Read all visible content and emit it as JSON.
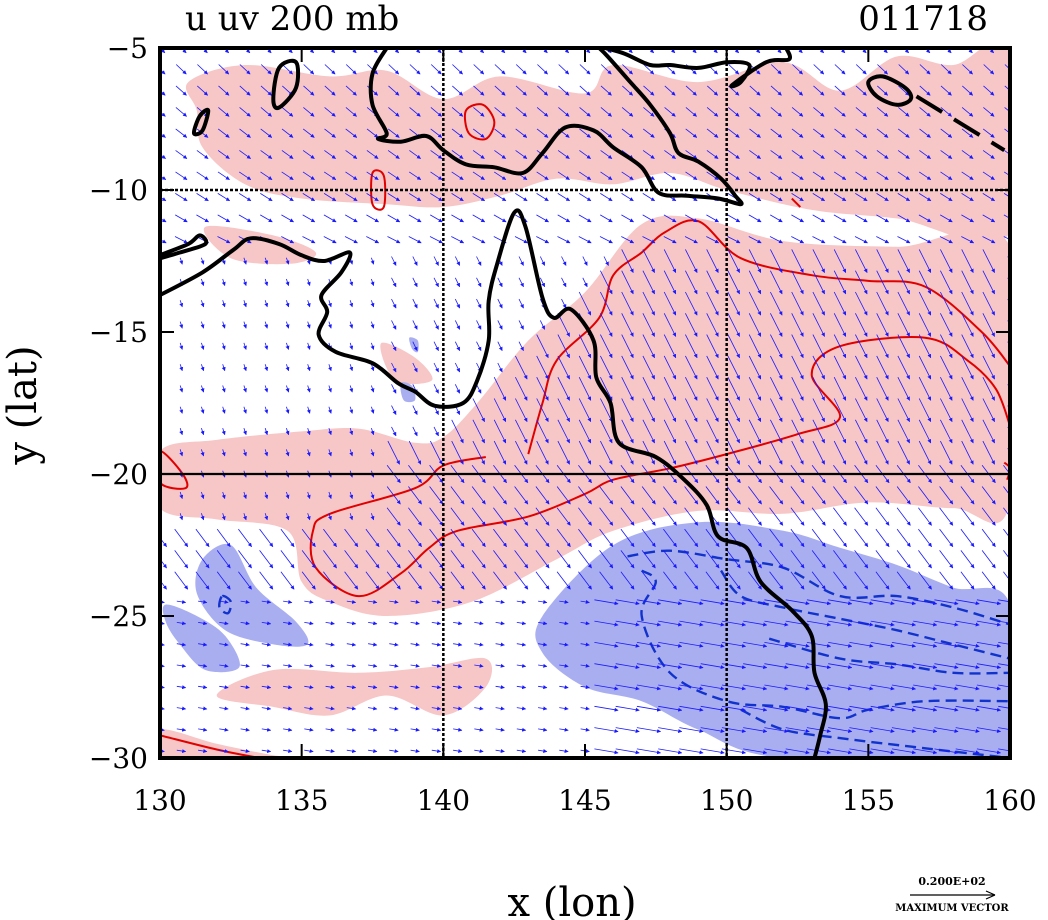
{
  "header": {
    "title": "u uv 200 mb",
    "id": "011718"
  },
  "chart_data": {
    "type": "contour",
    "title": "u uv 200 mb",
    "time_code": "011718",
    "xlabel": "x (lon)",
    "ylabel": "y (lat)",
    "xlim": [
      130,
      160
    ],
    "ylim": [
      -30,
      -5
    ],
    "xticks": [
      130,
      135,
      140,
      145,
      150,
      155,
      160
    ],
    "yticks": [
      -5,
      -10,
      -15,
      -20,
      -25,
      -30
    ],
    "xtick_labels": [
      "130",
      "135",
      "140",
      "145",
      "150",
      "155",
      "160"
    ],
    "ytick_labels": [
      "−5",
      "−10",
      "−15",
      "−20",
      "−25",
      "−30"
    ],
    "gridlines_lon": [
      140,
      150
    ],
    "gridlines_lat": [
      -10,
      -20
    ],
    "colors": {
      "positive_shade": "#f7c6c6",
      "negative_shade": "#a9aef0",
      "positive_contour": "#e00000",
      "negative_contour": "#1133cc",
      "vectors": "#1a1aff",
      "coastline": "#000000"
    },
    "legend": {
      "vector_value": "0.200E+02",
      "vector_label": "MAXIMUM VECTOR"
    },
    "positive_shade_regions": [
      [
        [
          131,
          -6.2
        ],
        [
          133,
          -5.6
        ],
        [
          136,
          -6
        ],
        [
          138,
          -5.8
        ],
        [
          140,
          -6.8
        ],
        [
          142,
          -6
        ],
        [
          145,
          -6.6
        ],
        [
          146,
          -5.6
        ],
        [
          149,
          -6.2
        ],
        [
          152,
          -5.5
        ],
        [
          154,
          -6.5
        ],
        [
          156,
          -5.3
        ],
        [
          158,
          -5.6
        ],
        [
          160,
          -5
        ],
        [
          160,
          -11.5
        ],
        [
          156,
          -11
        ],
        [
          153,
          -10.7
        ],
        [
          150,
          -10
        ],
        [
          148,
          -9.4
        ],
        [
          146,
          -9.8
        ],
        [
          144,
          -9.6
        ],
        [
          142,
          -10.2
        ],
        [
          140,
          -10.6
        ],
        [
          138,
          -10.5
        ],
        [
          135,
          -10.3
        ],
        [
          133,
          -9.8
        ],
        [
          131.5,
          -8.5
        ],
        [
          131.3,
          -7.2
        ]
      ],
      [
        [
          141.2,
          -17.5
        ],
        [
          143,
          -15.3
        ],
        [
          145,
          -13.6
        ],
        [
          147,
          -11.2
        ],
        [
          149,
          -11
        ],
        [
          152,
          -11.8
        ],
        [
          156,
          -12
        ],
        [
          160,
          -12
        ],
        [
          160,
          -21
        ],
        [
          158,
          -21.2
        ],
        [
          155,
          -21
        ],
        [
          152,
          -21.4
        ],
        [
          149,
          -21.3
        ],
        [
          146,
          -22
        ],
        [
          144,
          -23
        ],
        [
          141,
          -24.5
        ],
        [
          138,
          -25
        ],
        [
          136,
          -24.5
        ],
        [
          135,
          -23.8
        ],
        [
          134.5,
          -22
        ],
        [
          132,
          -21.6
        ],
        [
          130,
          -21.2
        ],
        [
          130,
          -19.2
        ],
        [
          132,
          -18.8
        ],
        [
          135,
          -18.5
        ],
        [
          137,
          -18.4
        ],
        [
          139,
          -18.9
        ],
        [
          140,
          -18.7
        ]
      ],
      [
        [
          132,
          -27.8
        ],
        [
          134,
          -28.2
        ],
        [
          136,
          -28.5
        ],
        [
          138,
          -27.8
        ],
        [
          140,
          -28.5
        ],
        [
          141.5,
          -27.5
        ],
        [
          141.5,
          -26.5
        ],
        [
          139.5,
          -26.8
        ],
        [
          137,
          -27
        ],
        [
          134,
          -26.9
        ]
      ],
      [
        [
          130,
          -29
        ],
        [
          132,
          -29.5
        ],
        [
          134,
          -29.9
        ],
        [
          135,
          -30
        ],
        [
          130,
          -30
        ]
      ],
      [
        [
          137.8,
          -15.4
        ],
        [
          139,
          -15.9
        ],
        [
          139.6,
          -16.7
        ],
        [
          138.3,
          -16.7
        ]
      ],
      [
        [
          131.6,
          -11.3
        ],
        [
          134,
          -11.6
        ],
        [
          135.5,
          -12.2
        ],
        [
          134.6,
          -12.6
        ],
        [
          132.5,
          -12.4
        ]
      ]
    ],
    "negative_shade_regions": [
      [
        [
          143.5,
          -25
        ],
        [
          146,
          -22.5
        ],
        [
          149,
          -21.7
        ],
        [
          152,
          -22
        ],
        [
          154,
          -22.6
        ],
        [
          156,
          -23.2
        ],
        [
          158,
          -24
        ],
        [
          160,
          -24.6
        ],
        [
          160,
          -30
        ],
        [
          152,
          -30
        ],
        [
          149,
          -29
        ],
        [
          147,
          -28
        ],
        [
          145,
          -27.5
        ],
        [
          143.5,
          -26.3
        ]
      ],
      [
        [
          131.5,
          -23
        ],
        [
          132.5,
          -22.5
        ],
        [
          133.4,
          -24
        ],
        [
          134.8,
          -25.2
        ],
        [
          135.2,
          -26
        ],
        [
          134,
          -26
        ],
        [
          132.3,
          -25.5
        ],
        [
          131.3,
          -24.2
        ]
      ],
      [
        [
          130.2,
          -24.6
        ],
        [
          131.3,
          -25
        ],
        [
          132.3,
          -25.7
        ],
        [
          132.8,
          -26.8
        ],
        [
          131.6,
          -26.9
        ],
        [
          130.7,
          -26
        ],
        [
          130.2,
          -25.2
        ]
      ],
      [
        [
          138.5,
          -16.8
        ],
        [
          138.9,
          -16.9
        ],
        [
          139,
          -17.4
        ],
        [
          138.6,
          -17.4
        ]
      ],
      [
        [
          138.8,
          -15.2
        ],
        [
          139.1,
          -15.3
        ],
        [
          139.1,
          -15.7
        ],
        [
          138.9,
          -15.6
        ]
      ]
    ],
    "positive_contours": [
      [
        [
          130,
          -19.2
        ],
        [
          130.8,
          -20
        ],
        [
          130.9,
          -20.5
        ],
        [
          130,
          -20.3
        ]
      ],
      [
        [
          143,
          -19.3
        ],
        [
          143.5,
          -17.5
        ],
        [
          144,
          -16
        ],
        [
          145.5,
          -14.5
        ],
        [
          146,
          -13
        ],
        [
          147,
          -12.2
        ],
        [
          147.8,
          -11.5
        ],
        [
          149,
          -11.1
        ],
        [
          150.5,
          -12.4
        ],
        [
          153,
          -13
        ],
        [
          155,
          -13.2
        ],
        [
          157,
          -13.4
        ],
        [
          159,
          -15
        ],
        [
          160,
          -16.2
        ]
      ],
      [
        [
          160,
          -18.3
        ],
        [
          159.5,
          -17
        ],
        [
          158.5,
          -16
        ],
        [
          157,
          -15.2
        ],
        [
          154,
          -15.5
        ],
        [
          153,
          -16.5
        ],
        [
          154,
          -18
        ],
        [
          152.5,
          -18.6
        ],
        [
          150,
          -19.3
        ],
        [
          148,
          -19.8
        ],
        [
          146,
          -20.2
        ],
        [
          145,
          -20.7
        ],
        [
          143,
          -21.5
        ],
        [
          140.5,
          -22
        ],
        [
          139.5,
          -22.6
        ],
        [
          138.5,
          -23.5
        ],
        [
          137,
          -24.3
        ],
        [
          135.5,
          -23.3
        ],
        [
          135.4,
          -22
        ],
        [
          136,
          -21.4
        ],
        [
          139,
          -20.5
        ],
        [
          140,
          -19.7
        ],
        [
          141.5,
          -19.4
        ]
      ],
      [
        [
          130,
          -29.2
        ],
        [
          132,
          -29.7
        ],
        [
          133.5,
          -30
        ]
      ],
      [
        [
          140.8,
          -7.2
        ],
        [
          141.4,
          -7.0
        ],
        [
          141.8,
          -7.6
        ],
        [
          141.5,
          -8.2
        ],
        [
          140.9,
          -8.0
        ]
      ],
      [
        [
          137.5,
          -9.4
        ],
        [
          137.9,
          -9.5
        ],
        [
          137.9,
          -10.6
        ],
        [
          137.5,
          -10.5
        ]
      ],
      [
        [
          159.8,
          -19.6
        ],
        [
          160,
          -19.8
        ],
        [
          159.9,
          -20.2
        ]
      ],
      [
        [
          152.3,
          -10.3
        ],
        [
          152.6,
          -10.6
        ]
      ]
    ],
    "negative_contours": [
      [
        [
          146.5,
          -22.9
        ],
        [
          148,
          -22.7
        ],
        [
          150,
          -23
        ],
        [
          152,
          -23.3
        ],
        [
          154,
          -24.3
        ],
        [
          156,
          -24.3
        ],
        [
          158,
          -24.7
        ],
        [
          160,
          -25.3
        ]
      ],
      [
        [
          147,
          -23.4
        ],
        [
          147.5,
          -23.8
        ],
        [
          147,
          -25
        ],
        [
          148,
          -27
        ],
        [
          150,
          -28
        ],
        [
          152,
          -28.2
        ],
        [
          154,
          -28.6
        ],
        [
          155,
          -28.3
        ],
        [
          157,
          -28
        ],
        [
          160,
          -28
        ]
      ],
      [
        [
          149.8,
          -23.4
        ],
        [
          150.5,
          -24.3
        ],
        [
          152,
          -24.7
        ],
        [
          154,
          -25.1
        ],
        [
          156,
          -25.5
        ],
        [
          158,
          -26
        ],
        [
          160,
          -26.5
        ]
      ],
      [
        [
          151.5,
          -25.8
        ],
        [
          154,
          -26.5
        ],
        [
          156,
          -26.7
        ],
        [
          158,
          -27
        ],
        [
          160,
          -27
        ]
      ],
      [
        [
          150.5,
          -28.3
        ],
        [
          152,
          -29
        ],
        [
          154,
          -29.3
        ],
        [
          156.5,
          -29.6
        ],
        [
          160,
          -30
        ]
      ],
      [
        [
          132.2,
          -24.3
        ],
        [
          132.5,
          -24.5
        ],
        [
          132.4,
          -24.9
        ],
        [
          132.1,
          -24.7
        ]
      ]
    ],
    "coastlines": [
      [
        [
          130,
          -13.7
        ],
        [
          131.5,
          -12.9
        ],
        [
          132.6,
          -12.1
        ],
        [
          133.2,
          -11.7
        ],
        [
          134.2,
          -11.9
        ],
        [
          135,
          -12.3
        ],
        [
          135.8,
          -12.5
        ],
        [
          136.7,
          -12.2
        ],
        [
          136.4,
          -12.9
        ],
        [
          135.7,
          -13.7
        ],
        [
          135.9,
          -14.3
        ],
        [
          135.6,
          -15.1
        ],
        [
          136.2,
          -15.7
        ],
        [
          137.5,
          -16.1
        ],
        [
          138.4,
          -16.8
        ],
        [
          139,
          -17.1
        ],
        [
          139.7,
          -17.6
        ],
        [
          140.7,
          -17.5
        ],
        [
          141.2,
          -16.7
        ],
        [
          141.6,
          -15.3
        ],
        [
          141.6,
          -13.9
        ],
        [
          141.9,
          -12.6
        ],
        [
          142.5,
          -10.8
        ],
        [
          142.9,
          -11.3
        ],
        [
          143.5,
          -13.8
        ],
        [
          143.9,
          -14.5
        ],
        [
          144.5,
          -14.2
        ],
        [
          145.3,
          -15.3
        ],
        [
          145.4,
          -16.6
        ],
        [
          145.9,
          -17.5
        ],
        [
          146.2,
          -18.9
        ],
        [
          147.5,
          -19.4
        ],
        [
          148.5,
          -20.2
        ],
        [
          149.3,
          -21.1
        ],
        [
          149.7,
          -22.2
        ],
        [
          150.7,
          -22.6
        ],
        [
          151.2,
          -23.8
        ],
        [
          152.3,
          -24.8
        ],
        [
          153.0,
          -25.7
        ],
        [
          153.1,
          -27
        ],
        [
          153.5,
          -28.1
        ],
        [
          153.3,
          -29.2
        ],
        [
          153.1,
          -30
        ]
      ],
      [
        [
          130,
          -12.3
        ],
        [
          131,
          -11.9
        ],
        [
          131.4,
          -11.6
        ],
        [
          131.6,
          -11.9
        ],
        [
          130.7,
          -12.2
        ],
        [
          130,
          -12.4
        ]
      ],
      [
        [
          138,
          -5
        ],
        [
          137.5,
          -5.9
        ],
        [
          137.5,
          -7
        ],
        [
          138,
          -8.0
        ],
        [
          137.7,
          -8.2
        ],
        [
          138.5,
          -8.3
        ],
        [
          139.4,
          -8.1
        ],
        [
          140.0,
          -8.6
        ],
        [
          140.8,
          -9.1
        ],
        [
          141.8,
          -9.2
        ],
        [
          142.8,
          -9.4
        ],
        [
          143.5,
          -8.7
        ],
        [
          144.3,
          -7.8
        ],
        [
          145.3,
          -7.9
        ],
        [
          146.0,
          -8.5
        ],
        [
          147.0,
          -9.2
        ],
        [
          147.6,
          -10.1
        ],
        [
          148.6,
          -10.2
        ],
        [
          149.7,
          -10.3
        ],
        [
          150.5,
          -10.5
        ],
        [
          150.3,
          -10.2
        ],
        [
          149.8,
          -9.6
        ],
        [
          149,
          -9
        ],
        [
          148.3,
          -8.7
        ],
        [
          148,
          -8
        ],
        [
          147.3,
          -7
        ],
        [
          146.6,
          -6.2
        ],
        [
          145.8,
          -5.3
        ],
        [
          145.5,
          -5
        ]
      ],
      [
        [
          134.2,
          -5.7
        ],
        [
          134.8,
          -5.5
        ],
        [
          134.8,
          -6.4
        ],
        [
          134.2,
          -7.1
        ],
        [
          134.0,
          -6.8
        ]
      ],
      [
        [
          131.4,
          -7.4
        ],
        [
          131.7,
          -7.2
        ],
        [
          131.5,
          -7.9
        ],
        [
          131.2,
          -8.0
        ]
      ],
      [
        [
          145.7,
          -5
        ],
        [
          146.4,
          -5.2
        ],
        [
          147.3,
          -5.6
        ],
        [
          148,
          -5.6
        ],
        [
          149,
          -5.7
        ],
        [
          150,
          -5.5
        ],
        [
          150.8,
          -5.6
        ],
        [
          150.5,
          -6.2
        ],
        [
          150.2,
          -6.3
        ],
        [
          151.4,
          -5.5
        ],
        [
          152.2,
          -5.4
        ],
        [
          152.1,
          -5
        ]
      ],
      [
        [
          155.5,
          -6.0
        ],
        [
          156.3,
          -6.4
        ],
        [
          156.5,
          -6.8
        ],
        [
          156.0,
          -7.0
        ],
        [
          155.3,
          -6.7
        ],
        [
          155.0,
          -6.2
        ]
      ]
    ],
    "dashed_coastlines": [
      [
        [
          156.7,
          -6.7
        ],
        [
          159.8,
          -8.6
        ]
      ]
    ]
  }
}
